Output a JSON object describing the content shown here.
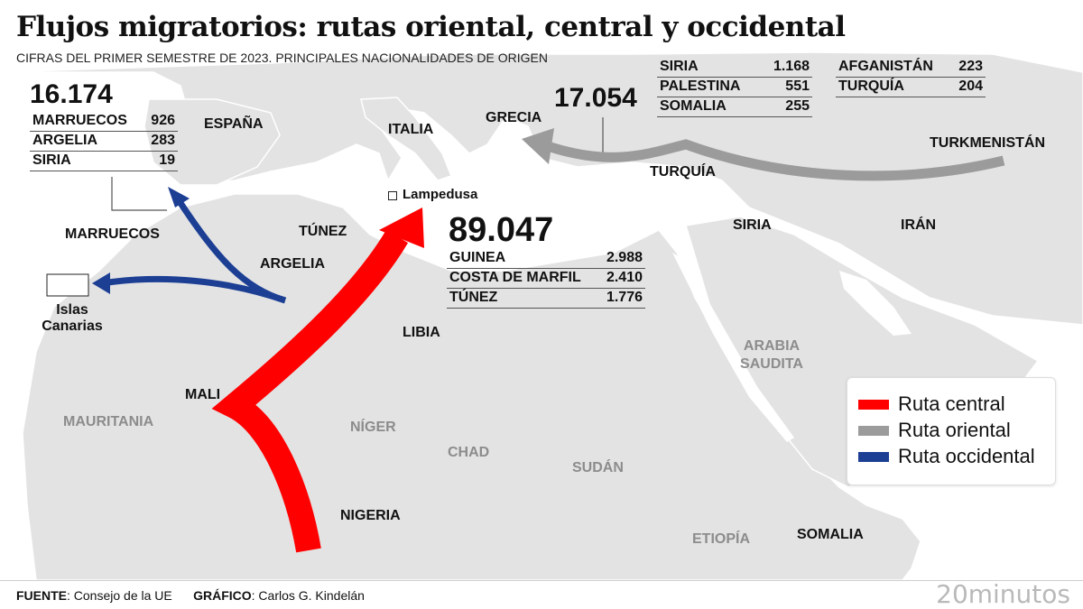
{
  "title": "Flujos migratorios: rutas oriental, central y occidental",
  "subtitle": "CIFRAS DEL PRIMER SEMESTRE DE 2023. PRINCIPALES NACIONALIDADES DE ORIGEN",
  "routes": {
    "occidental": {
      "total": "16.174",
      "rows": [
        {
          "country": "MARRUECOS",
          "value": "926"
        },
        {
          "country": "ARGELIA",
          "value": "283"
        },
        {
          "country": "SIRIA",
          "value": "19"
        }
      ]
    },
    "central": {
      "total": "89.047",
      "rows": [
        {
          "country": "GUINEA",
          "value": "2.988"
        },
        {
          "country": "COSTA DE MARFIL",
          "value": "2.410"
        },
        {
          "country": "TÚNEZ",
          "value": "1.776"
        }
      ]
    },
    "oriental": {
      "total": "17.054",
      "rows": [
        {
          "country": "SIRIA",
          "value": "1.168"
        },
        {
          "country": "PALESTINA",
          "value": "551"
        },
        {
          "country": "SOMALIA",
          "value": "255"
        },
        {
          "country": "AFGANISTÁN",
          "value": "223"
        },
        {
          "country": "TURQUÍA",
          "value": "204"
        }
      ]
    }
  },
  "map_labels": {
    "espana": "ESPAÑA",
    "italia": "ITALIA",
    "grecia": "GRECIA",
    "turquia": "TURQUÍA",
    "turkmenistan": "TURKMENISTÁN",
    "siria": "SIRIA",
    "iran": "IRÁN",
    "marruecos": "MARRUECOS",
    "tunez": "TÚNEZ",
    "argelia": "ARGELIA",
    "islas": "Islas",
    "canarias": "Canarias",
    "libia": "LIBIA",
    "lampedusa": "Lampedusa",
    "mali": "MALI",
    "mauritania": "MAURITANIA",
    "niger": "NÍGER",
    "chad": "CHAD",
    "sudan": "SUDÁN",
    "nigeria": "NIGERIA",
    "etiopia": "ETIOPÍA",
    "somalia": "SOMALIA",
    "arabia": "ARABIA",
    "saudita": "SAUDITA"
  },
  "legend": [
    {
      "label": "Ruta central",
      "color": "#ff0000"
    },
    {
      "label": "Ruta oriental",
      "color": "#9b9b9b"
    },
    {
      "label": "Ruta occidental",
      "color": "#1c3f94"
    }
  ],
  "footer": {
    "source_label": "FUENTE",
    "source_value": ": Consejo de la UE",
    "graphic_label": "GRÁFICO",
    "graphic_value": ": Carlos G. Kindelán",
    "brand": "20minutos"
  },
  "colors": {
    "land": "#e2e2e2",
    "sea": "#ffffff",
    "central": "#ff0000",
    "oriental": "#9b9b9b",
    "occidental": "#1c3f94"
  }
}
